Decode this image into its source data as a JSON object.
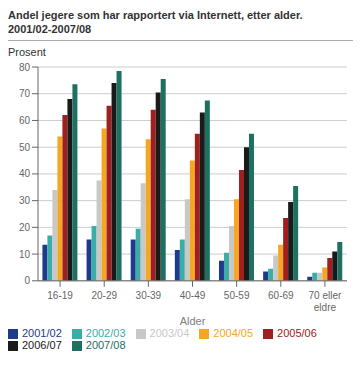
{
  "chart_data": {
    "type": "bar",
    "title": "Andel jegere som har rapportert via Internett, etter alder.",
    "subtitle": "2001/02-2007/08",
    "xlabel": "Alder",
    "ylabel": "Prosent",
    "categories": [
      "16-19",
      "20-29",
      "30-39",
      "40-49",
      "50-59",
      "60-69",
      "70 eller\neldre"
    ],
    "series": [
      {
        "name": "2001/02",
        "color": "#1e3a8a",
        "values": [
          13.5,
          15.5,
          15.5,
          11.5,
          7.5,
          3.5,
          1.5
        ]
      },
      {
        "name": "2002/03",
        "color": "#3aada8",
        "values": [
          17.0,
          20.5,
          19.5,
          15.5,
          10.5,
          4.5,
          3.0
        ]
      },
      {
        "name": "2003/04",
        "color": "#c8c8c8",
        "values": [
          34.0,
          37.5,
          36.5,
          30.5,
          20.5,
          9.5,
          3.0
        ]
      },
      {
        "name": "2004/05",
        "color": "#f5a623",
        "values": [
          54.0,
          57.0,
          53.0,
          45.0,
          30.5,
          13.5,
          5.0
        ]
      },
      {
        "name": "2005/06",
        "color": "#a02020",
        "values": [
          62.0,
          65.5,
          64.0,
          55.0,
          41.5,
          23.5,
          8.5
        ]
      },
      {
        "name": "2006/07",
        "color": "#1a1a1a",
        "values": [
          68.0,
          74.0,
          70.5,
          63.0,
          50.0,
          29.5,
          11.0
        ]
      },
      {
        "name": "2007/08",
        "color": "#1e7060",
        "values": [
          73.5,
          78.5,
          75.5,
          67.5,
          55.0,
          35.5,
          14.5
        ]
      }
    ],
    "ylim": [
      0,
      80
    ],
    "yticks": [
      0,
      10,
      20,
      30,
      40,
      50,
      60,
      70,
      80
    ],
    "grid": true,
    "legend": "lower left"
  }
}
